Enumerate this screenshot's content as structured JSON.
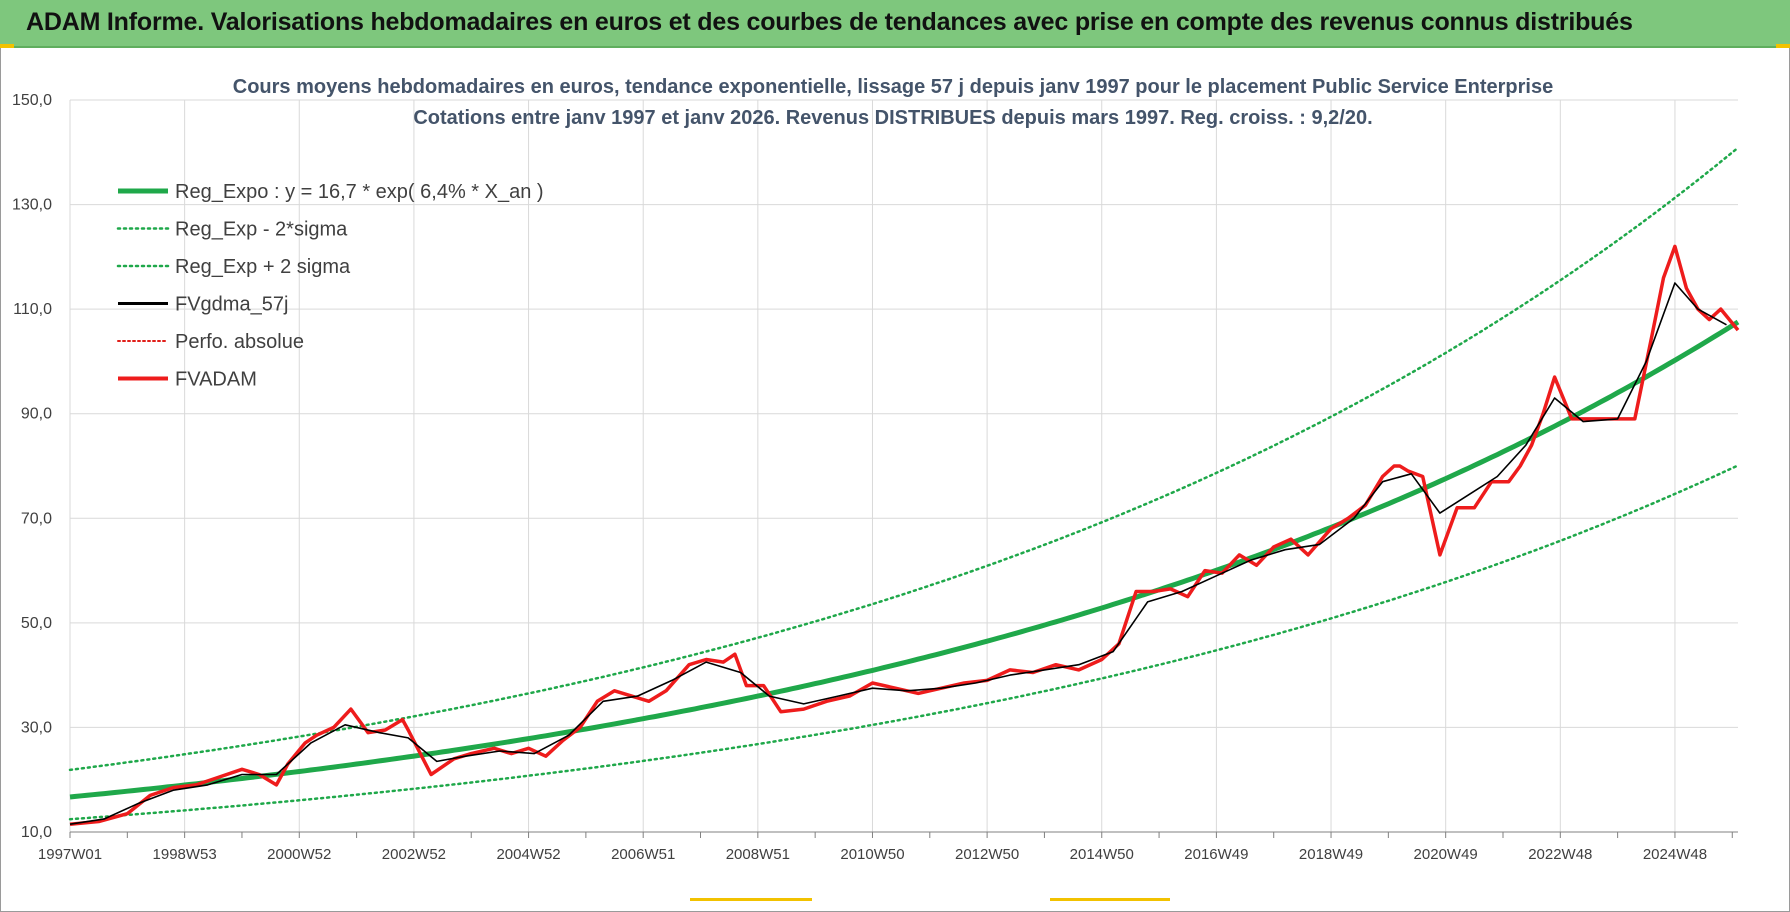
{
  "banner": {
    "title": "ADAM Informe. Valorisations hebdomadaires en euros et des courbes de tendances avec prise en compte des revenus connus distribués"
  },
  "colors": {
    "banner_bg": "#7ec77d",
    "reg_expo": "#1fa84a",
    "sigma": "#1fa84a",
    "fvgdma": "#000000",
    "perfo": "#e0201b",
    "fvadam": "#ee1c1c",
    "title": "#44546a"
  },
  "chart_data": {
    "type": "line",
    "title": "Cours moyens hebdomadaires en euros, tendance exponentielle, lissage 57 j depuis janv 1997  pour le placement Public Service Enterprise",
    "subtitle": "Cotations entre janv 1997 et janv 2026. Revenus DISTRIBUES depuis mars 1997.  Reg. croiss. : 9,2/20.",
    "xlabel": "",
    "ylabel": "",
    "ylim": [
      10,
      150
    ],
    "yticks": [
      "10,0",
      "30,0",
      "50,0",
      "70,0",
      "90,0",
      "110,0",
      "130,0",
      "150,0"
    ],
    "xlim": [
      1997.0,
      2026.1
    ],
    "xticks": [
      {
        "label": "1997W01",
        "x": 1997.0
      },
      {
        "label": "1998W53",
        "x": 1999.0
      },
      {
        "label": "2000W52",
        "x": 2001.0
      },
      {
        "label": "2002W52",
        "x": 2003.0
      },
      {
        "label": "2004W52",
        "x": 2005.0
      },
      {
        "label": "2006W51",
        "x": 2007.0
      },
      {
        "label": "2008W51",
        "x": 2009.0
      },
      {
        "label": "2010W50",
        "x": 2011.0
      },
      {
        "label": "2012W50",
        "x": 2013.0
      },
      {
        "label": "2014W50",
        "x": 2015.0
      },
      {
        "label": "2016W49",
        "x": 2017.0
      },
      {
        "label": "2018W49",
        "x": 2019.0
      },
      {
        "label": "2020W49",
        "x": 2021.0
      },
      {
        "label": "2022W48",
        "x": 2023.0
      },
      {
        "label": "2024W48",
        "x": 2025.0
      }
    ],
    "grid": true,
    "legend_position": "top-left",
    "legend": [
      {
        "label": "Reg_Expo : y = 16,7 * exp( 6,4% *  X_an )",
        "style": "thick-green"
      },
      {
        "label": "Reg_Exp - 2*sigma",
        "style": "dotted-green"
      },
      {
        "label": "Reg_Exp + 2 sigma",
        "style": "dotted-green"
      },
      {
        "label": "FVgdma_57j",
        "style": "black"
      },
      {
        "label": "Perfo. absolue",
        "style": "dotted-red"
      },
      {
        "label": "FVADAM",
        "style": "thick-red"
      }
    ],
    "regression": {
      "a": 16.7,
      "rate": 0.064,
      "lower_factor": 0.745,
      "upper_factor": 1.31
    },
    "series": [
      {
        "name": "FVADAM",
        "x": [
          1997.0,
          1997.5,
          1998.0,
          1998.4,
          1998.8,
          1999.2,
          1999.6,
          2000.0,
          2000.3,
          2000.6,
          2000.8,
          2001.1,
          2001.3,
          2001.6,
          2001.9,
          2002.2,
          2002.5,
          2002.8,
          2002.9,
          2003.3,
          2003.7,
          2004.0,
          2004.4,
          2004.7,
          2005.0,
          2005.3,
          2005.6,
          2005.9,
          2006.2,
          2006.5,
          2006.8,
          2007.1,
          2007.4,
          2007.8,
          2008.1,
          2008.4,
          2008.6,
          2008.8,
          2009.1,
          2009.4,
          2009.8,
          2010.2,
          2010.6,
          2011.0,
          2011.4,
          2011.8,
          2012.2,
          2012.6,
          2013.0,
          2013.4,
          2013.8,
          2014.2,
          2014.6,
          2015.0,
          2015.3,
          2015.6,
          2015.9,
          2016.2,
          2016.5,
          2016.8,
          2017.1,
          2017.4,
          2017.7,
          2018.0,
          2018.3,
          2018.6,
          2019.0,
          2019.3,
          2019.6,
          2019.9,
          2020.1,
          2020.2,
          2020.35,
          2020.6,
          2020.9,
          2021.2,
          2021.5,
          2021.8,
          2022.1,
          2022.3,
          2022.5,
          2022.7,
          2022.9,
          2023.2,
          2023.5,
          2023.8,
          2024.1,
          2024.3,
          2024.6,
          2024.8,
          2025.0,
          2025.2,
          2025.4,
          2025.6,
          2025.8,
          2026.1
        ],
        "values": [
          11.5,
          12.0,
          13.5,
          17.0,
          18.5,
          19.0,
          20.5,
          22.0,
          21.0,
          19.0,
          23.0,
          27.0,
          28.5,
          30.0,
          33.5,
          29.0,
          29.5,
          31.5,
          29.5,
          21.0,
          24.0,
          25.0,
          26.0,
          25.0,
          26.0,
          24.5,
          27.5,
          30.0,
          35.0,
          37.0,
          36.0,
          35.0,
          37.0,
          42.0,
          43.0,
          42.5,
          44.0,
          38.0,
          38.0,
          33.0,
          33.5,
          35.0,
          36.0,
          38.5,
          37.5,
          36.5,
          37.5,
          38.5,
          39.0,
          41.0,
          40.5,
          42.0,
          41.0,
          43.0,
          46.0,
          56.0,
          56.0,
          56.5,
          55.0,
          60.0,
          59.5,
          63.0,
          61.0,
          64.5,
          66.0,
          63.0,
          68.0,
          70.0,
          72.5,
          78.0,
          80.0,
          80.0,
          79.0,
          78.0,
          63.0,
          72.0,
          72.0,
          77.0,
          77.0,
          80.0,
          84.0,
          90.0,
          97.0,
          89.0,
          89.0,
          89.0,
          89.0,
          89.0,
          105.0,
          116.0,
          122.0,
          114.0,
          110.0,
          108.0,
          110.0,
          106.0
        ]
      },
      {
        "name": "FVgdma_57j",
        "x": [
          1997.0,
          1997.6,
          1998.2,
          1998.8,
          1999.4,
          2000.0,
          2000.6,
          2001.2,
          2001.8,
          2002.4,
          2002.9,
          2003.4,
          2003.9,
          2004.5,
          2005.1,
          2005.7,
          2006.3,
          2006.9,
          2007.5,
          2008.1,
          2008.7,
          2009.2,
          2009.8,
          2010.4,
          2011.0,
          2011.6,
          2012.2,
          2012.8,
          2013.4,
          2014.0,
          2014.6,
          2015.2,
          2015.8,
          2016.4,
          2017.0,
          2017.6,
          2018.2,
          2018.8,
          2019.4,
          2019.9,
          2020.4,
          2020.9,
          2021.4,
          2021.9,
          2022.4,
          2022.9,
          2023.4,
          2024.0,
          2024.5,
          2025.0,
          2025.4,
          2025.9
        ],
        "values": [
          11.5,
          12.5,
          15.5,
          18.0,
          19.0,
          21.0,
          21.0,
          27.0,
          30.5,
          29.0,
          28.0,
          23.5,
          24.5,
          25.5,
          25.0,
          28.5,
          35.0,
          36.0,
          39.0,
          42.5,
          40.5,
          36.0,
          34.5,
          36.0,
          37.5,
          37.0,
          37.5,
          38.5,
          40.0,
          41.0,
          42.0,
          44.5,
          54.0,
          56.0,
          59.0,
          62.0,
          64.0,
          65.0,
          70.0,
          77.0,
          78.5,
          71.0,
          74.5,
          78.0,
          84.0,
          93.0,
          88.5,
          89.0,
          100.0,
          115.0,
          110.0,
          107.0
        ]
      }
    ]
  }
}
